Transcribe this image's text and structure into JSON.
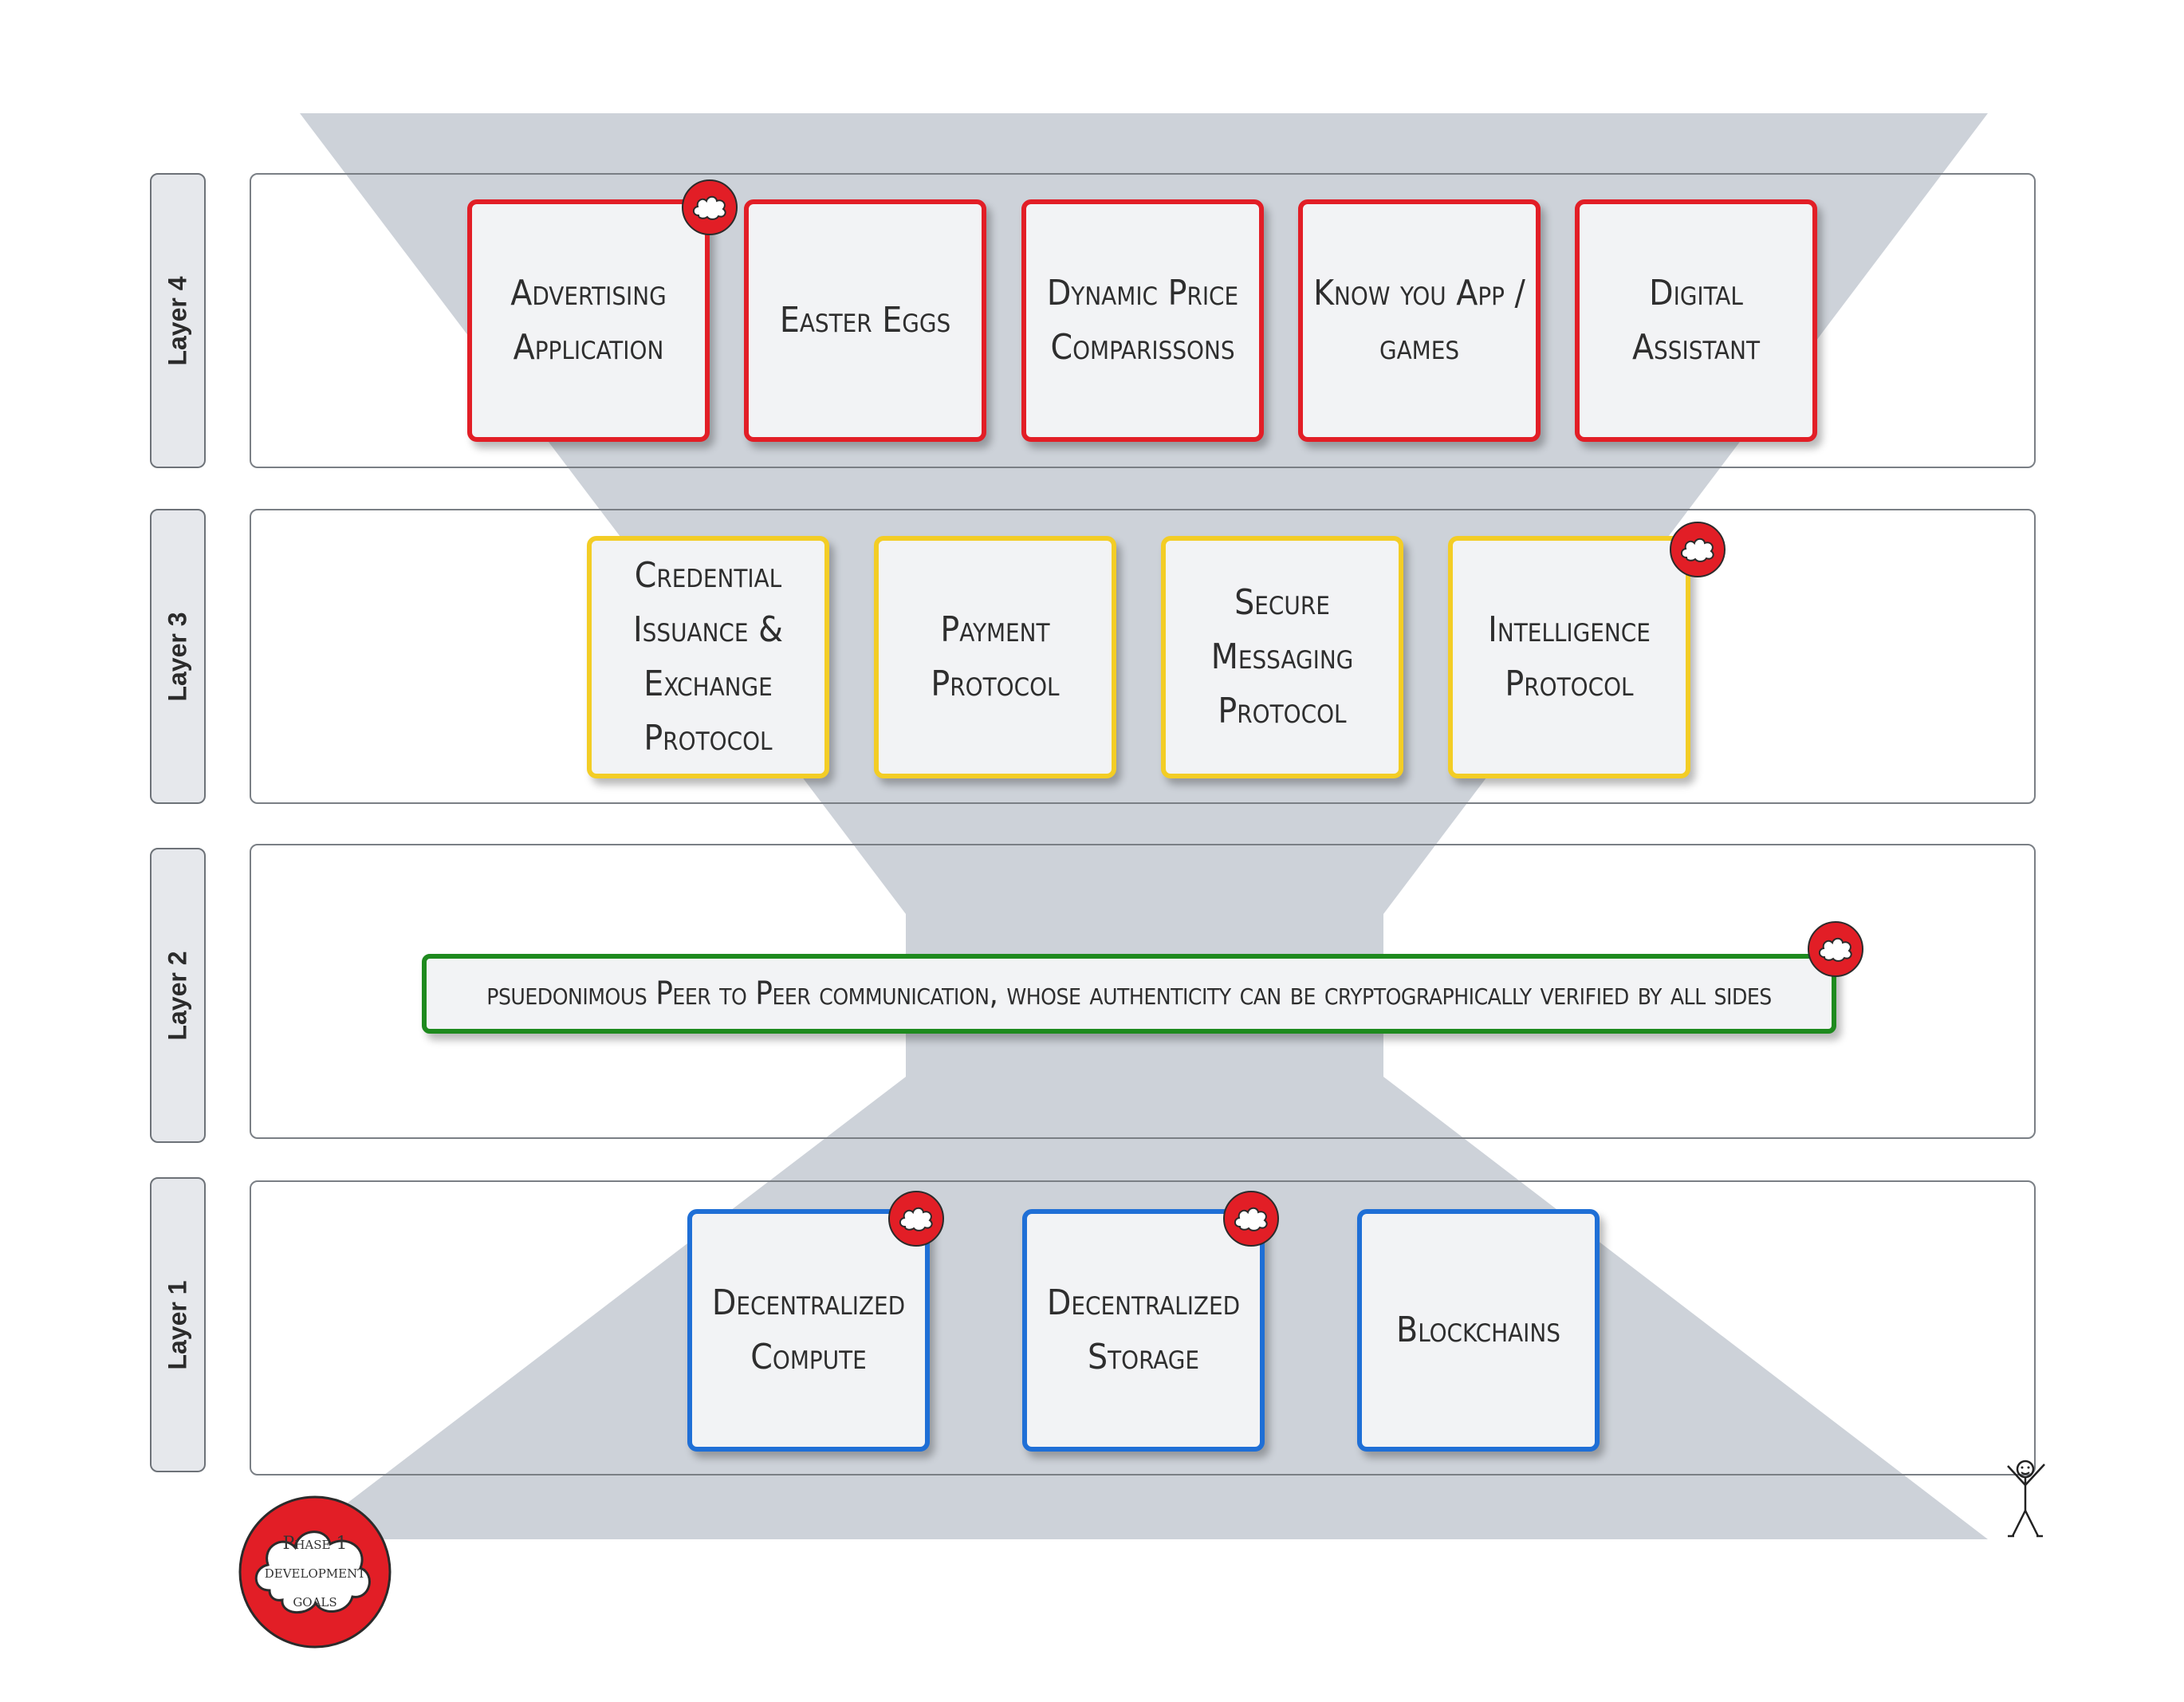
{
  "layers": [
    {
      "label": "Layer 4"
    },
    {
      "label": "Layer 3"
    },
    {
      "label": "Layer 2"
    },
    {
      "label": "Layer 1"
    }
  ],
  "layer4": {
    "cards": [
      {
        "label": "Advertising Application"
      },
      {
        "label": "Easter Eggs"
      },
      {
        "label": "Dynamic Price Comparissons"
      },
      {
        "label": "Know you App / games"
      },
      {
        "label": "Digital Assistant"
      }
    ]
  },
  "layer3": {
    "cards": [
      {
        "label": "Credential Issuance & Exchange Protocol"
      },
      {
        "label": "Payment Protocol"
      },
      {
        "label": "Secure Messaging Protocol"
      },
      {
        "label": "Intelligence Protocol"
      }
    ]
  },
  "layer2": {
    "card": {
      "label": "psuedonimous Peer to Peer communication, whose authenticity can be cryptographically verified by all sides"
    }
  },
  "layer1": {
    "cards": [
      {
        "label": "Decentralized Compute"
      },
      {
        "label": "Decentralized Storage"
      },
      {
        "label": "Blockchains"
      }
    ]
  },
  "legend": {
    "label": "Phase 1 development goals"
  },
  "colors": {
    "funnel": "#cdd2d9",
    "layer4_border": "#e21e26",
    "layer3_border": "#f3cd25",
    "layer2_border": "#1e8a1e",
    "layer1_border": "#1f6fd6",
    "badge": "#e21e26"
  }
}
